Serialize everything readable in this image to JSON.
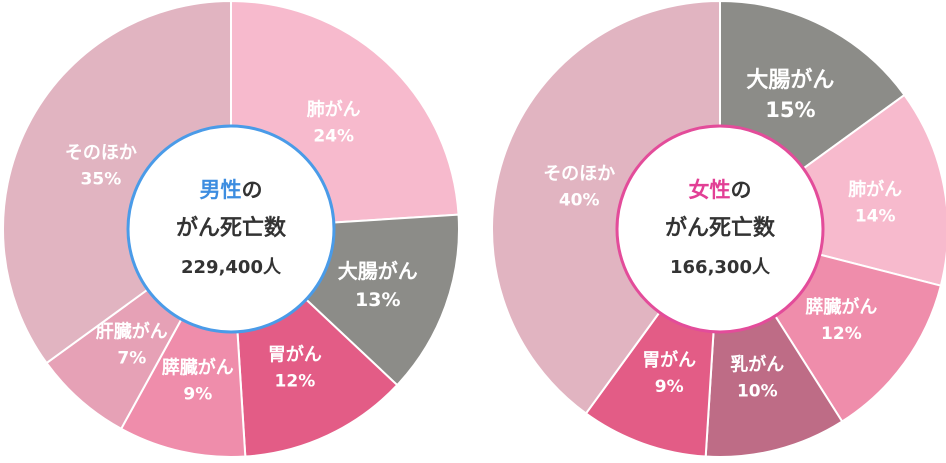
{
  "chart_data": [
    {
      "type": "pie",
      "center_label": {
        "accent_text": "男性",
        "line1_rest": "の",
        "line2": "がん死亡数",
        "total": "229,400人",
        "accent_color": "#3d8de0",
        "ring_color": "#4a9be8"
      },
      "slices": [
        {
          "name": "肺がん",
          "percent_label": "24%",
          "value": 24,
          "color": "#f7bacd"
        },
        {
          "name": "大腸がん",
          "percent_label": "13%",
          "value": 13,
          "color": "#8c8c88"
        },
        {
          "name": "胃がん",
          "percent_label": "12%",
          "value": 12,
          "color": "#e35c86"
        },
        {
          "name": "膵臓がん",
          "percent_label": "9%",
          "value": 9,
          "color": "#ef8dab"
        },
        {
          "name": "肝臓がん",
          "percent_label": "7%",
          "value": 7,
          "color": "#e6a1b6"
        },
        {
          "name": "そのほか",
          "percent_label": "35%",
          "value": 35,
          "color": "#e1b4c1"
        }
      ]
    },
    {
      "type": "pie",
      "center_label": {
        "accent_text": "女性",
        "line1_rest": "の",
        "line2": "がん死亡数",
        "total": "166,300人",
        "accent_color": "#e23f95",
        "ring_color": "#e34c9a"
      },
      "slices": [
        {
          "name": "大腸がん",
          "percent_label": "15%",
          "value": 15,
          "color": "#8c8c88"
        },
        {
          "name": "肺がん",
          "percent_label": "14%",
          "value": 14,
          "color": "#f7bacd"
        },
        {
          "name": "膵臓がん",
          "percent_label": "12%",
          "value": 12,
          "color": "#ef8dab"
        },
        {
          "name": "乳がん",
          "percent_label": "10%",
          "value": 10,
          "color": "#be6c86"
        },
        {
          "name": "胃がん",
          "percent_label": "9%",
          "value": 9,
          "color": "#e35c86"
        },
        {
          "name": "そのほか",
          "percent_label": "40%",
          "value": 40,
          "color": "#e1b4c1"
        }
      ]
    }
  ]
}
